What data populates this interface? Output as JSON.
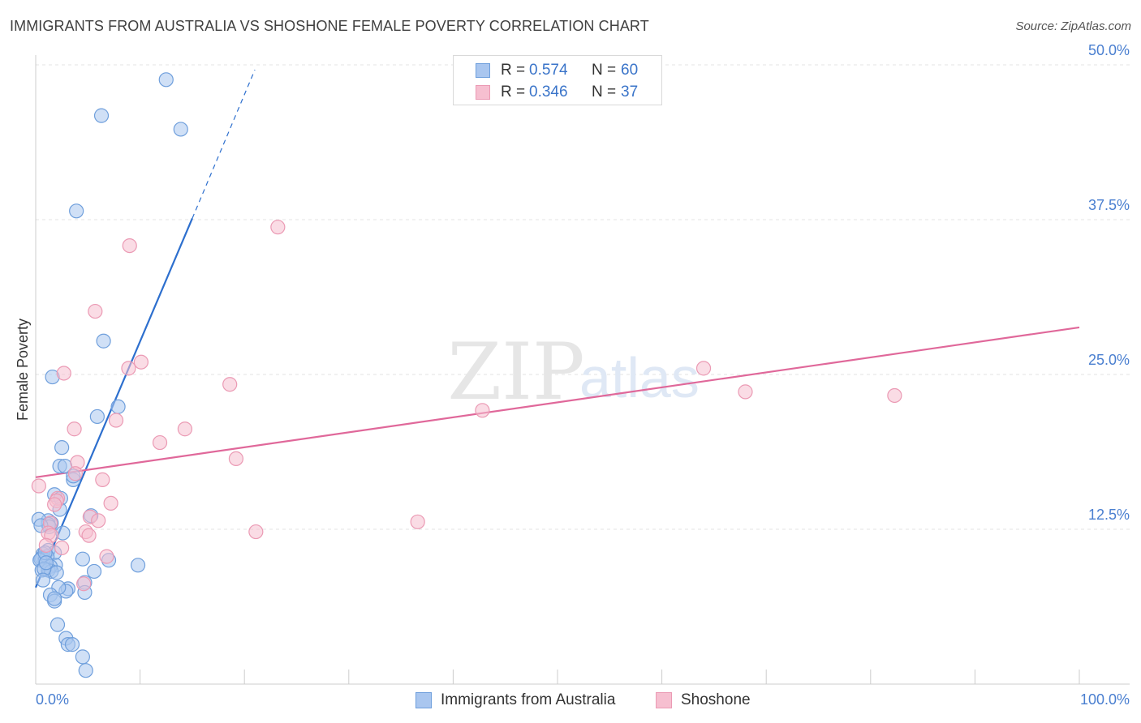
{
  "title": "IMMIGRANTS FROM AUSTRALIA VS SHOSHONE FEMALE POVERTY CORRELATION CHART",
  "source": "Source: ZipAtlas.com",
  "colors": {
    "blue_fill": "#a9c6ef",
    "blue_stroke": "#6f9fdc",
    "blue_line": "#2d6fce",
    "pink_fill": "#f6bfd0",
    "pink_stroke": "#eb9ab4",
    "pink_line": "#e0689a",
    "tick_text": "#4a7fd0",
    "grid": "#e3e3e3"
  },
  "legend": {
    "series1": {
      "r_label": "R =",
      "r_value": "0.574",
      "n_label": "N =",
      "n_value": "60"
    },
    "series2": {
      "r_label": "R =",
      "r_value": "0.346",
      "n_label": "N =",
      "n_value": "37"
    }
  },
  "bottom_legend": [
    "Immigrants from Australia",
    "Shoshone"
  ],
  "watermark": "ZIPatlas",
  "chart_data": {
    "type": "scatter",
    "title": "IMMIGRANTS FROM AUSTRALIA VS SHOSHONE FEMALE POVERTY CORRELATION CHART",
    "xlabel": "",
    "ylabel": "Female Poverty",
    "xlim": [
      0,
      100
    ],
    "ylim": [
      0,
      50
    ],
    "x_tick_labels": [
      "0.0%",
      "100.0%"
    ],
    "y_tick_labels": [
      "12.5%",
      "25.0%",
      "37.5%",
      "50.0%"
    ],
    "y_ticks": [
      12.5,
      25,
      37.5,
      50
    ],
    "grid": true,
    "legend_position": "top-center",
    "series": [
      {
        "name": "Immigrants from Australia",
        "r": 0.574,
        "n": 60,
        "trend": {
          "x": [
            0,
            15
          ],
          "y": [
            7.8,
            37.6
          ],
          "dashed_to": [
            21,
            49.6
          ]
        },
        "points": [
          [
            12.5,
            48.8
          ],
          [
            6.3,
            45.9
          ],
          [
            13.9,
            44.8
          ],
          [
            3.9,
            38.2
          ],
          [
            6.5,
            27.7
          ],
          [
            1.6,
            24.8
          ],
          [
            7.9,
            22.4
          ],
          [
            5.9,
            21.6
          ],
          [
            2.5,
            19.1
          ],
          [
            2.3,
            17.6
          ],
          [
            2.8,
            17.6
          ],
          [
            3.6,
            16.5
          ],
          [
            3.6,
            16.8
          ],
          [
            1.8,
            15.3
          ],
          [
            2.4,
            15.0
          ],
          [
            2.3,
            14.1
          ],
          [
            5.3,
            13.6
          ],
          [
            1.2,
            13.2
          ],
          [
            1.5,
            13.0
          ],
          [
            1.2,
            12.9
          ],
          [
            1.3,
            12.7
          ],
          [
            0.3,
            13.3
          ],
          [
            0.5,
            12.8
          ],
          [
            2.6,
            12.2
          ],
          [
            1.2,
            10.8
          ],
          [
            1.8,
            10.6
          ],
          [
            0.7,
            10.5
          ],
          [
            0.6,
            10.2
          ],
          [
            0.5,
            10.1
          ],
          [
            0.9,
            10.0
          ],
          [
            1.1,
            10.3
          ],
          [
            4.5,
            10.1
          ],
          [
            7.0,
            10.0
          ],
          [
            0.4,
            10.0
          ],
          [
            1.9,
            9.6
          ],
          [
            1.4,
            9.5
          ],
          [
            0.6,
            9.2
          ],
          [
            1.2,
            9.2
          ],
          [
            1.5,
            9.1
          ],
          [
            2.0,
            9.0
          ],
          [
            0.8,
            9.3
          ],
          [
            5.6,
            9.1
          ],
          [
            9.8,
            9.6
          ],
          [
            0.7,
            8.4
          ],
          [
            4.7,
            8.2
          ],
          [
            3.1,
            7.7
          ],
          [
            2.9,
            7.5
          ],
          [
            2.2,
            7.8
          ],
          [
            4.7,
            7.4
          ],
          [
            1.4,
            7.2
          ],
          [
            1.8,
            6.7
          ],
          [
            1.8,
            6.9
          ],
          [
            2.1,
            4.8
          ],
          [
            2.9,
            3.7
          ],
          [
            3.1,
            3.2
          ],
          [
            3.5,
            3.2
          ],
          [
            4.5,
            2.2
          ],
          [
            4.8,
            1.1
          ],
          [
            0.9,
            10.6
          ],
          [
            1.0,
            9.8
          ]
        ]
      },
      {
        "name": "Shoshone",
        "r": 0.346,
        "n": 37,
        "trend": {
          "x": [
            0,
            100
          ],
          "y": [
            16.7,
            28.8
          ]
        },
        "points": [
          [
            23.2,
            36.9
          ],
          [
            9.0,
            35.4
          ],
          [
            5.7,
            30.1
          ],
          [
            10.1,
            26.0
          ],
          [
            8.9,
            25.5
          ],
          [
            2.7,
            25.1
          ],
          [
            18.6,
            24.2
          ],
          [
            64.0,
            25.5
          ],
          [
            68.0,
            23.6
          ],
          [
            82.3,
            23.3
          ],
          [
            42.8,
            22.1
          ],
          [
            7.7,
            21.3
          ],
          [
            3.7,
            20.6
          ],
          [
            14.3,
            20.6
          ],
          [
            11.9,
            19.5
          ],
          [
            19.2,
            18.2
          ],
          [
            4.0,
            17.9
          ],
          [
            3.8,
            17.0
          ],
          [
            6.4,
            16.5
          ],
          [
            0.3,
            16.0
          ],
          [
            2.1,
            15.0
          ],
          [
            2.0,
            14.8
          ],
          [
            1.8,
            14.5
          ],
          [
            7.2,
            14.6
          ],
          [
            5.2,
            13.5
          ],
          [
            6.0,
            13.2
          ],
          [
            1.4,
            13.0
          ],
          [
            36.6,
            13.1
          ],
          [
            1.2,
            12.2
          ],
          [
            4.8,
            12.3
          ],
          [
            5.1,
            12.0
          ],
          [
            1.5,
            12.0
          ],
          [
            21.1,
            12.3
          ],
          [
            2.5,
            11.0
          ],
          [
            1.0,
            11.2
          ],
          [
            6.8,
            10.3
          ],
          [
            4.6,
            8.1
          ]
        ]
      }
    ]
  }
}
